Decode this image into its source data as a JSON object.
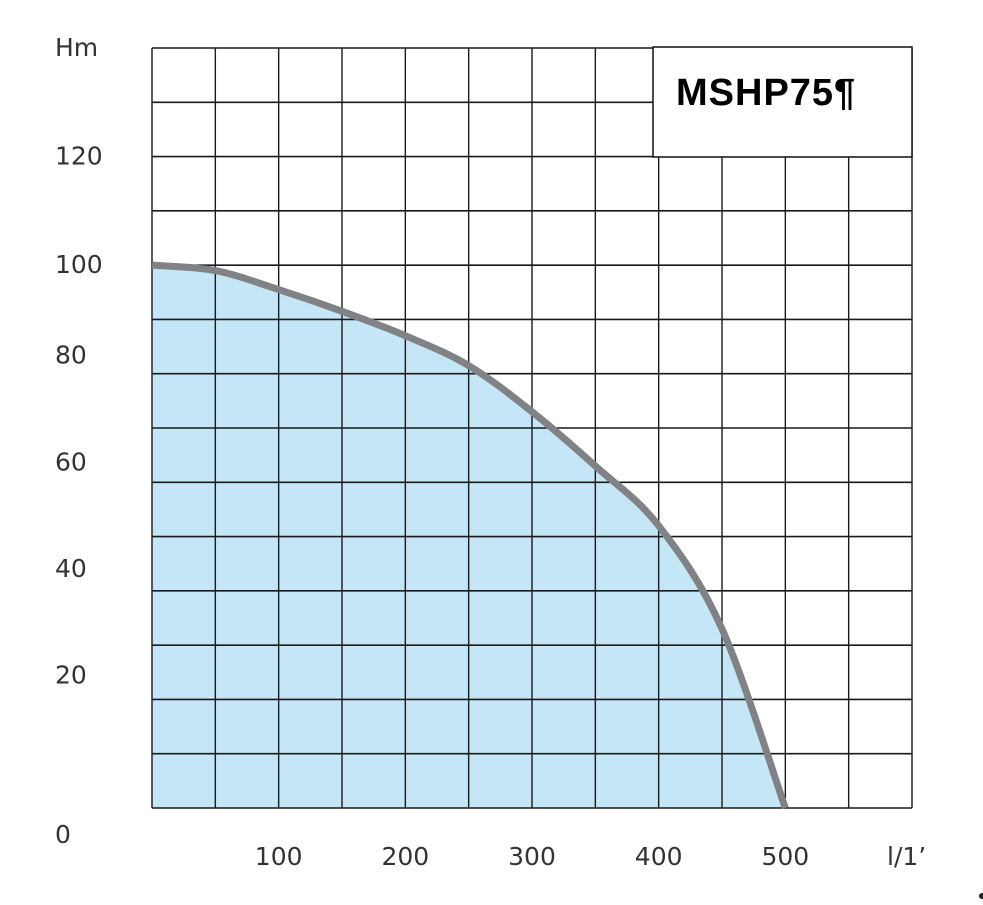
{
  "chart_data": {
    "type": "area",
    "title": "MSHP75¶",
    "xlabel": "l/1’",
    "ylabel": "Hm",
    "xlim": [
      0,
      600
    ],
    "ylim": [
      0,
      140
    ],
    "grid": true,
    "x_ticks": [
      100,
      200,
      300,
      400,
      500
    ],
    "y_ticks": [
      0,
      20,
      40,
      60,
      80,
      100,
      120
    ],
    "x_tick_labels": [
      "100",
      "200",
      "300",
      "400",
      "500"
    ],
    "y_tick_labels": [
      "0",
      "20",
      "40",
      "60",
      "80",
      "100",
      "120"
    ],
    "x_grid_step": 50,
    "y_grid_step": 10,
    "series": [
      {
        "x": [
          0,
          50,
          100,
          150,
          200,
          250,
          300,
          350,
          400,
          450,
          500
        ],
        "y": [
          100,
          99,
          95.5,
          91.5,
          87,
          81.5,
          73,
          63,
          52,
          33,
          0
        ]
      }
    ],
    "colors": {
      "fill": "#c5e6f6",
      "curve": "#808285",
      "grid": "#1a1a1a",
      "text": "#333333"
    }
  }
}
